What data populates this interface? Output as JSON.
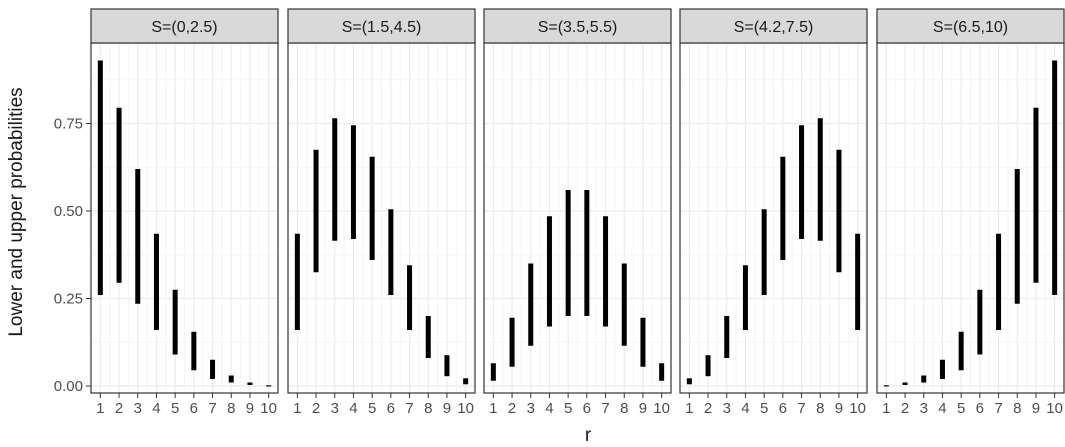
{
  "chart_data": {
    "type": "range-bar",
    "x_label": "r",
    "y_label": "Lower and upper probabilities",
    "x_ticks": [
      1,
      2,
      3,
      4,
      5,
      6,
      7,
      8,
      9,
      10
    ],
    "y_ticks": [
      "0.00",
      "0.25",
      "0.50",
      "0.75"
    ],
    "y_tick_values": [
      0,
      0.25,
      0.5,
      0.75
    ],
    "ylim": [
      -0.02,
      0.98
    ],
    "xlim": [
      0.5,
      10.5
    ],
    "grid": true,
    "colors": {
      "bar": "#000000",
      "strip": "#d9d9d9",
      "grid_major": "#ebebeb",
      "grid_minor": "#f5f5f5",
      "panel_border": "#333333",
      "text": "#1a1a1a",
      "tick_label": "#4d4d4d"
    },
    "panels": [
      {
        "label": "S=(0,2.5)",
        "lower": [
          0.26,
          0.295,
          0.235,
          0.16,
          0.09,
          0.045,
          0.02,
          0.01,
          0.003,
          0.0
        ],
        "upper": [
          0.93,
          0.795,
          0.62,
          0.435,
          0.275,
          0.155,
          0.075,
          0.03,
          0.01,
          0.002
        ]
      },
      {
        "label": "S=(1.5,4.5)",
        "lower": [
          0.16,
          0.325,
          0.415,
          0.42,
          0.36,
          0.26,
          0.16,
          0.08,
          0.028,
          0.005
        ],
        "upper": [
          0.435,
          0.675,
          0.765,
          0.745,
          0.655,
          0.505,
          0.345,
          0.2,
          0.088,
          0.022
        ]
      },
      {
        "label": "S=(3.5,5.5)",
        "lower": [
          0.015,
          0.055,
          0.115,
          0.17,
          0.2,
          0.2,
          0.17,
          0.115,
          0.055,
          0.015
        ],
        "upper": [
          0.065,
          0.195,
          0.35,
          0.485,
          0.56,
          0.56,
          0.485,
          0.35,
          0.195,
          0.065
        ]
      },
      {
        "label": "S=(4.2,7.5)",
        "lower": [
          0.005,
          0.028,
          0.08,
          0.16,
          0.26,
          0.36,
          0.42,
          0.415,
          0.325,
          0.16
        ],
        "upper": [
          0.022,
          0.088,
          0.2,
          0.345,
          0.505,
          0.655,
          0.745,
          0.765,
          0.675,
          0.435
        ]
      },
      {
        "label": "S=(6.5,10)",
        "lower": [
          0.0,
          0.003,
          0.01,
          0.02,
          0.045,
          0.09,
          0.16,
          0.235,
          0.295,
          0.26
        ],
        "upper": [
          0.002,
          0.01,
          0.03,
          0.075,
          0.155,
          0.275,
          0.435,
          0.62,
          0.795,
          0.93
        ]
      }
    ]
  }
}
